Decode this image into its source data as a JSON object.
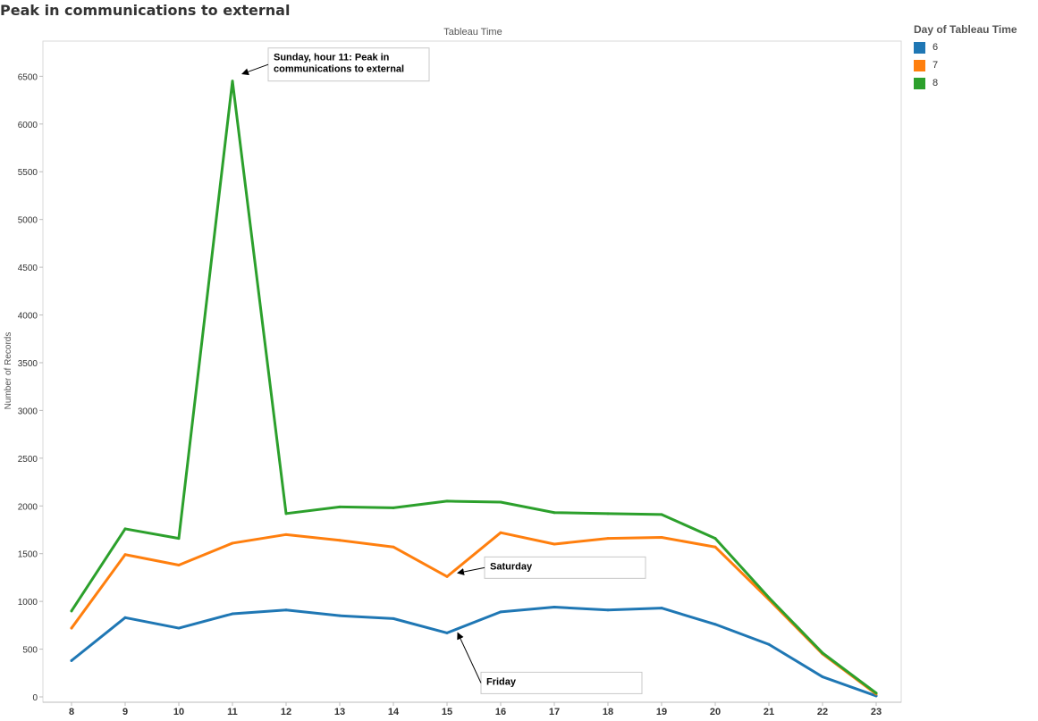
{
  "title": "Peak in communications to external",
  "chart_data": {
    "type": "line",
    "title": "Peak in communications to external",
    "xlabel": "Tableau Time",
    "ylabel": "Number of Records",
    "x": [
      8,
      9,
      10,
      11,
      12,
      13,
      14,
      15,
      16,
      17,
      18,
      19,
      20,
      21,
      22,
      23
    ],
    "ylim": [
      0,
      6700
    ],
    "yticks": [
      0,
      500,
      1000,
      1500,
      2000,
      2500,
      3000,
      3500,
      4000,
      4500,
      5000,
      5500,
      6000,
      6500
    ],
    "legend_title": "Day of Tableau Time",
    "legend_position": "top-right",
    "grid": false,
    "series": [
      {
        "name": "6",
        "color": "#1f77b4",
        "values": [
          380,
          830,
          720,
          870,
          910,
          850,
          820,
          670,
          890,
          940,
          910,
          930,
          760,
          550,
          210,
          10
        ]
      },
      {
        "name": "7",
        "color": "#ff7f0e",
        "values": [
          720,
          1490,
          1380,
          1610,
          1700,
          1640,
          1570,
          1260,
          1720,
          1600,
          1660,
          1670,
          1570,
          1020,
          450,
          30
        ]
      },
      {
        "name": "8",
        "color": "#2ca02c",
        "values": [
          900,
          1760,
          1660,
          6450,
          1920,
          1990,
          1980,
          2050,
          2040,
          1930,
          1920,
          1910,
          1660,
          1040,
          460,
          40
        ]
      }
    ],
    "annotations": [
      {
        "text": "Sunday, hour 11: Peak in communications to external",
        "x": 11,
        "y": 6450
      },
      {
        "text": "Saturday",
        "x": 15,
        "y": 1260
      },
      {
        "text": "Friday",
        "x": 15,
        "y": 670
      }
    ]
  }
}
